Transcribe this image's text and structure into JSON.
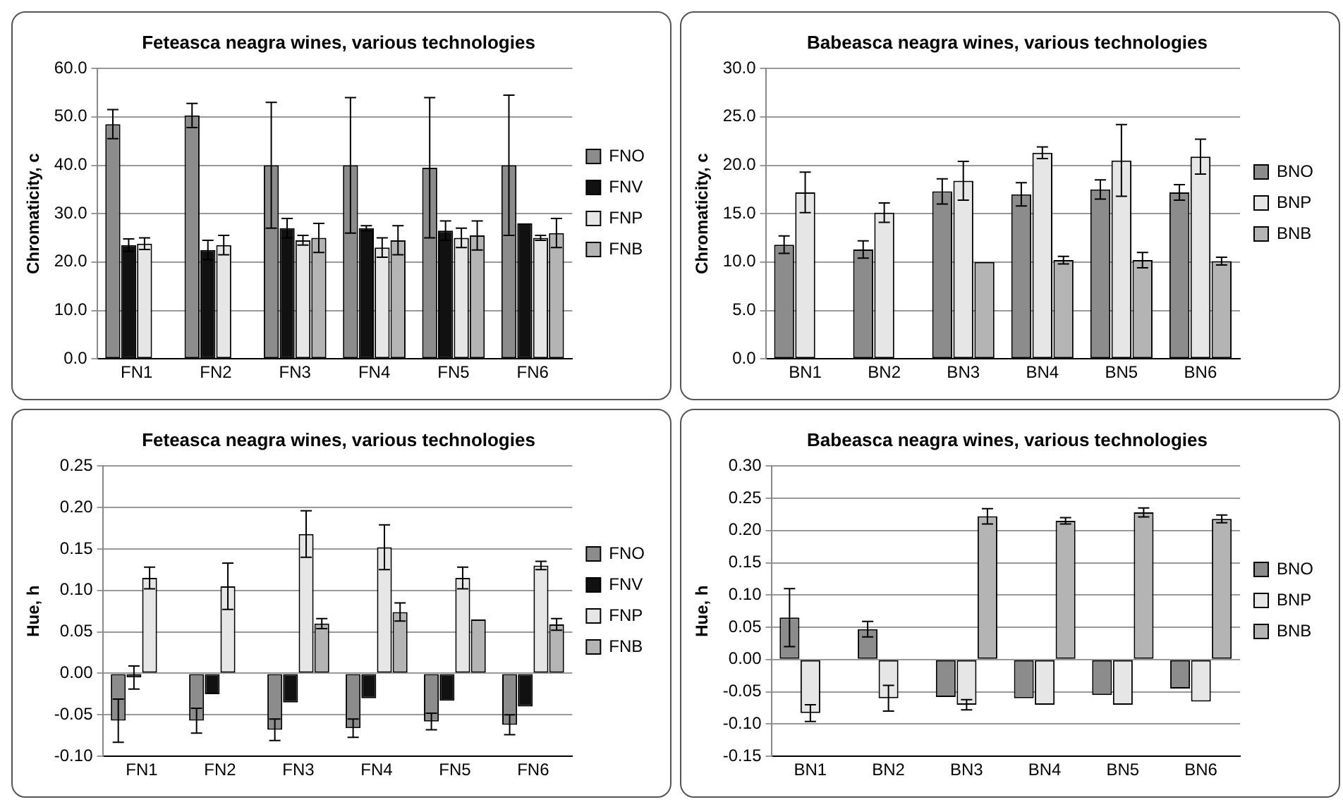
{
  "chart_data": [
    {
      "type": "bar",
      "title": "Feteasca neagra wines, various technologies",
      "ylabel": "Chromaticity, c",
      "categories": [
        "FN1",
        "FN2",
        "FN3",
        "FN4",
        "FN5",
        "FN6"
      ],
      "ylim": [
        0,
        60
      ],
      "yticks": [
        {
          "value": 0,
          "label": "0.0"
        },
        {
          "value": 10,
          "label": "10.0"
        },
        {
          "value": 20,
          "label": "20.0"
        },
        {
          "value": 30,
          "label": "30.0"
        },
        {
          "value": 40,
          "label": "40.0"
        },
        {
          "value": 50,
          "label": "50.0"
        },
        {
          "value": 60,
          "label": "60.0"
        }
      ],
      "grid": "y",
      "legend": "right",
      "series": [
        {
          "name": "FNO",
          "color": "#8c8c8c",
          "values": [
            48.5,
            50.3,
            40,
            40,
            39.5,
            40
          ],
          "errors": [
            3,
            2.5,
            13,
            14,
            14.5,
            14.5
          ]
        },
        {
          "name": "FNV",
          "color": "#111111",
          "values": [
            23.5,
            22.5,
            27,
            27,
            26.5,
            28
          ],
          "errors": [
            1.3,
            2,
            2,
            0.5,
            2,
            null
          ]
        },
        {
          "name": "FNP",
          "color": "#e6e6e6",
          "values": [
            23.8,
            23.5,
            24.5,
            23,
            25,
            25
          ],
          "errors": [
            1.2,
            2,
            1,
            2,
            2,
            0.5
          ]
        },
        {
          "name": "FNB",
          "color": "#b4b4b4",
          "values": [
            null,
            null,
            25,
            24.5,
            25.5,
            26
          ],
          "errors": [
            null,
            null,
            3,
            3,
            3,
            3
          ]
        }
      ]
    },
    {
      "type": "bar",
      "title": "Babeasca neagra wines, various technologies",
      "ylabel": "Chromaticity, c",
      "categories": [
        "BN1",
        "BN2",
        "BN3",
        "BN4",
        "BN5",
        "BN6"
      ],
      "ylim": [
        0,
        30
      ],
      "yticks": [
        {
          "value": 0,
          "label": "0.0"
        },
        {
          "value": 5,
          "label": "5.0"
        },
        {
          "value": 10,
          "label": "10.0"
        },
        {
          "value": 15,
          "label": "15.0"
        },
        {
          "value": 20,
          "label": "20.0"
        },
        {
          "value": 25,
          "label": "25.0"
        },
        {
          "value": 30,
          "label": "30.0"
        }
      ],
      "grid": "y",
      "legend": "right",
      "series": [
        {
          "name": "BNO",
          "color": "#8c8c8c",
          "values": [
            11.8,
            11.3,
            17.3,
            17,
            17.5,
            17.2
          ],
          "errors": [
            0.9,
            0.9,
            1.3,
            1.2,
            1,
            0.8
          ]
        },
        {
          "name": "BNP",
          "color": "#e6e6e6",
          "values": [
            17.2,
            15.1,
            18.4,
            21.3,
            20.5,
            20.9
          ],
          "errors": [
            2.1,
            1,
            2,
            0.6,
            3.7,
            1.8
          ]
        },
        {
          "name": "BNB",
          "color": "#b4b4b4",
          "values": [
            null,
            null,
            10,
            10.2,
            10.2,
            10.1
          ],
          "errors": [
            null,
            null,
            null,
            0.4,
            0.8,
            0.4
          ]
        }
      ]
    },
    {
      "type": "bar",
      "title": "Feteasca neagra wines, various technologies",
      "ylabel": "Hue, h",
      "categories": [
        "FN1",
        "FN2",
        "FN3",
        "FN4",
        "FN5",
        "FN6"
      ],
      "ylim": [
        -0.1,
        0.25
      ],
      "yticks": [
        {
          "value": -0.1,
          "label": "-0.10"
        },
        {
          "value": -0.05,
          "label": "-0.05"
        },
        {
          "value": 0,
          "label": "0.00"
        },
        {
          "value": 0.05,
          "label": "0.05"
        },
        {
          "value": 0.1,
          "label": "0.10"
        },
        {
          "value": 0.15,
          "label": "0.15"
        },
        {
          "value": 0.2,
          "label": "0.20"
        },
        0.25
      ],
      "grid": "y",
      "legend": "right",
      "series": [
        {
          "name": "FNO",
          "color": "#8c8c8c",
          "values": [
            -0.057,
            -0.057,
            -0.068,
            -0.066,
            -0.058,
            -0.062
          ],
          "errors": [
            0.026,
            0.015,
            0.013,
            0.011,
            0.01,
            0.012
          ]
        },
        {
          "name": "FNV",
          "color": "#111111",
          "values": [
            -0.005,
            -0.025,
            -0.035,
            -0.03,
            -0.033,
            -0.04
          ],
          "errors": [
            0.014,
            null,
            null,
            null,
            null,
            null
          ]
        },
        {
          "name": "FNP",
          "color": "#e6e6e6",
          "values": [
            0.115,
            0.105,
            0.168,
            0.152,
            0.115,
            0.13
          ],
          "errors": [
            0.013,
            0.028,
            0.028,
            0.027,
            0.013,
            0.005
          ]
        },
        {
          "name": "FNB",
          "color": "#b4b4b4",
          "values": [
            null,
            null,
            0.06,
            0.074,
            0.065,
            0.059
          ],
          "errors": [
            null,
            null,
            0.006,
            0.011,
            null,
            0.007
          ]
        }
      ]
    },
    {
      "type": "bar",
      "title": "Babeasca neagra wines, various technologies",
      "ylabel": "Hue, h",
      "categories": [
        "BN1",
        "BN2",
        "BN3",
        "BN4",
        "BN5",
        "BN6"
      ],
      "ylim": [
        -0.15,
        0.3
      ],
      "yticks": [
        -0.15,
        {
          "value": -0.1,
          "label": "-0.10"
        },
        -0.05,
        {
          "value": 0,
          "label": "0.00"
        },
        0.05,
        {
          "value": 0.1,
          "label": "0.10"
        },
        0.15,
        {
          "value": 0.2,
          "label": "0.20"
        },
        0.25,
        {
          "value": 0.3,
          "label": "0.30"
        }
      ],
      "grid": "y",
      "legend": "right",
      "series": [
        {
          "name": "BNO",
          "color": "#8c8c8c",
          "values": [
            0.065,
            0.047,
            -0.058,
            -0.06,
            -0.055,
            -0.045
          ],
          "errors": [
            0.045,
            0.012,
            null,
            null,
            null,
            null
          ]
        },
        {
          "name": "BNP",
          "color": "#e6e6e6",
          "values": [
            -0.083,
            -0.06,
            -0.07,
            -0.07,
            -0.07,
            -0.065
          ],
          "errors": [
            0.013,
            0.02,
            0.008,
            null,
            null,
            null
          ]
        },
        {
          "name": "BNB",
          "color": "#b4b4b4",
          "values": [
            null,
            null,
            0.222,
            0.215,
            0.228,
            0.218
          ],
          "errors": [
            null,
            null,
            0.012,
            0.005,
            0.007,
            0.006
          ]
        }
      ]
    }
  ]
}
